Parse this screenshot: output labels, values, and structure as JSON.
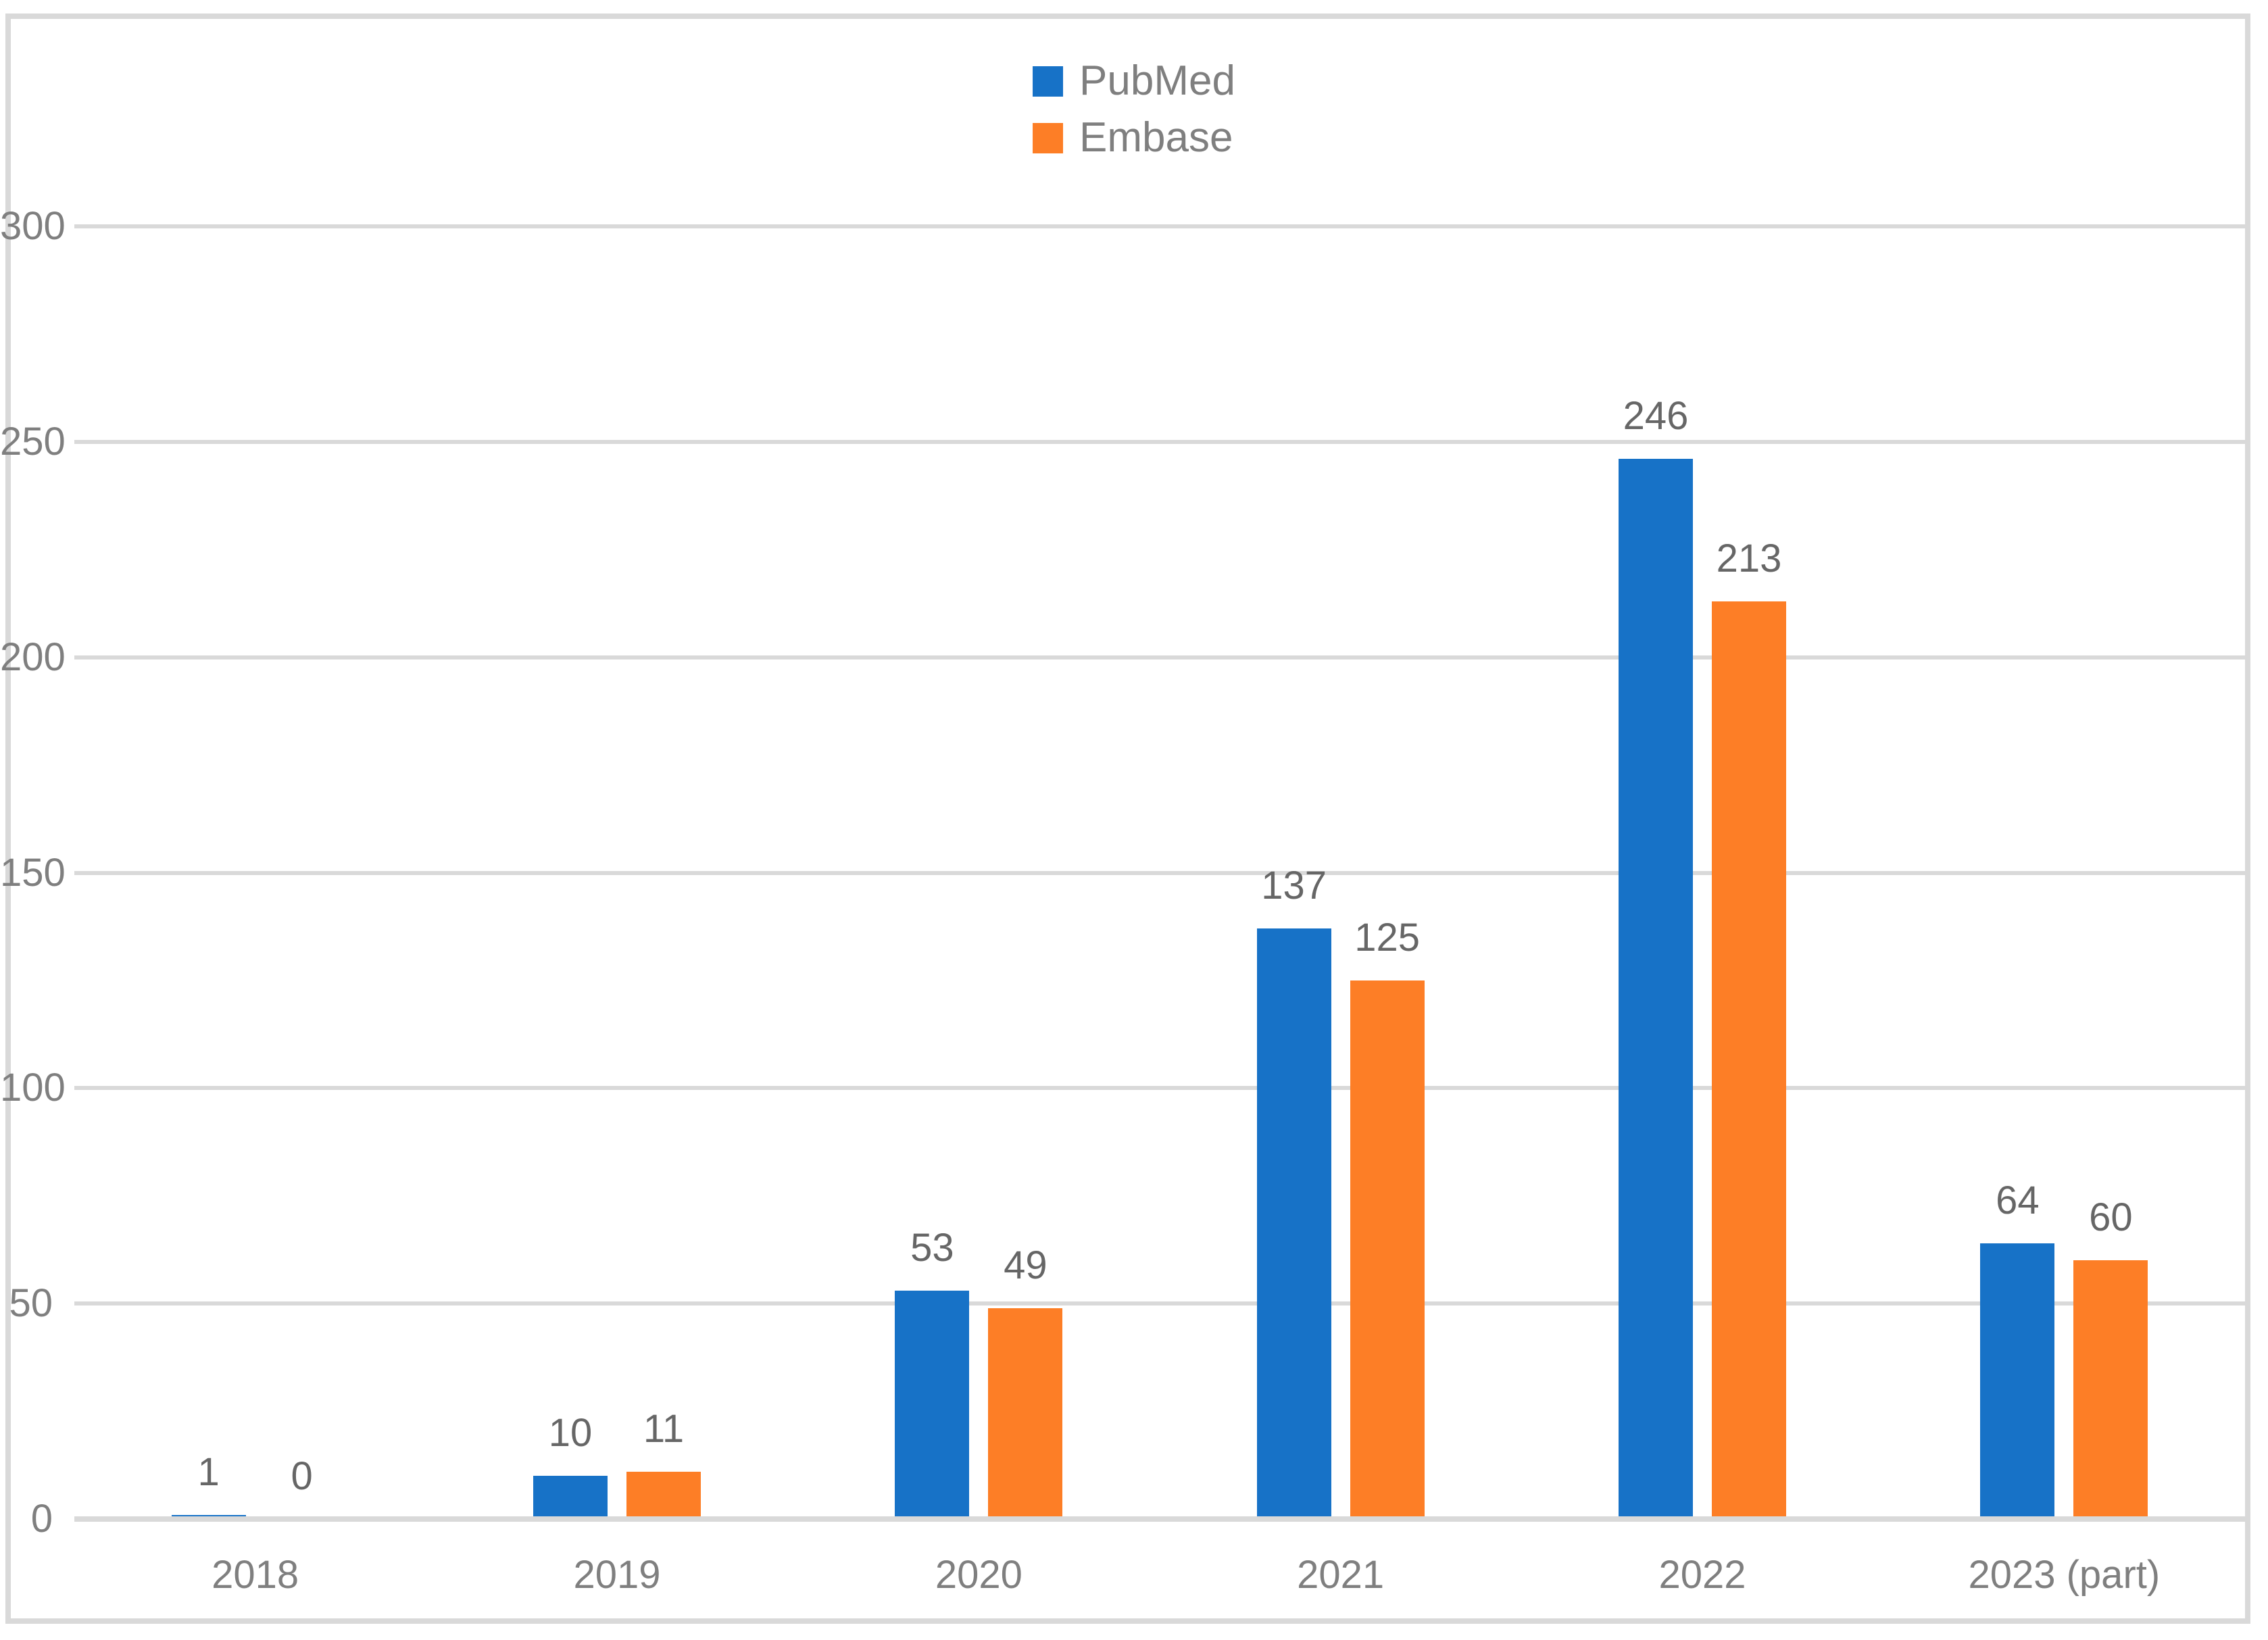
{
  "chart_data": {
    "type": "bar",
    "title": "",
    "categories": [
      "2018",
      "2019",
      "2020",
      "2021",
      "2022",
      "2023 (part)"
    ],
    "series": [
      {
        "name": "PubMed",
        "color": "#1772c7",
        "values": [
          1,
          10,
          53,
          137,
          246,
          64
        ]
      },
      {
        "name": "Embase",
        "color": "#fd7e26",
        "values": [
          0,
          11,
          49,
          125,
          213,
          60
        ]
      }
    ],
    "xlabel": "",
    "ylabel": "",
    "ylim": [
      0,
      300
    ],
    "yticks": [
      0,
      50,
      100,
      150,
      200,
      250,
      300
    ],
    "grid": true,
    "value_labels": true,
    "legend_position": "top-center"
  },
  "style": {
    "gridline_color": "#d9d9d9",
    "border_color": "#d9d9d9",
    "tick_text_color": "#7f7f7f",
    "value_label_color": "#666666",
    "background": "#ffffff"
  }
}
